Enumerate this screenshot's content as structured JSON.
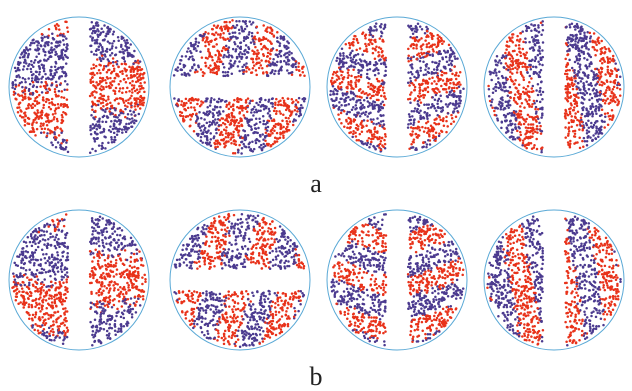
{
  "figure": {
    "rows": [
      {
        "caption": "a",
        "panels": [
          {
            "gap": "vertical",
            "pattern": "horizontal-bands"
          },
          {
            "gap": "horizontal",
            "pattern": "steep-streaks"
          },
          {
            "gap": "vertical",
            "pattern": "shallow-streaks"
          },
          {
            "gap": "vertical",
            "pattern": "vertical-streaks"
          }
        ]
      },
      {
        "caption": "b",
        "panels": [
          {
            "gap": "vertical",
            "pattern": "horizontal-bands"
          },
          {
            "gap": "horizontal",
            "pattern": "steep-streaks"
          },
          {
            "gap": "vertical",
            "pattern": "shallow-streaks"
          },
          {
            "gap": "vertical",
            "pattern": "vertical-streaks"
          }
        ]
      }
    ],
    "colors": {
      "circle_outline": "#5aa9d6",
      "series_red": "#e8321a",
      "series_purple": "#4b3a8f",
      "background": "#ffffff"
    }
  }
}
